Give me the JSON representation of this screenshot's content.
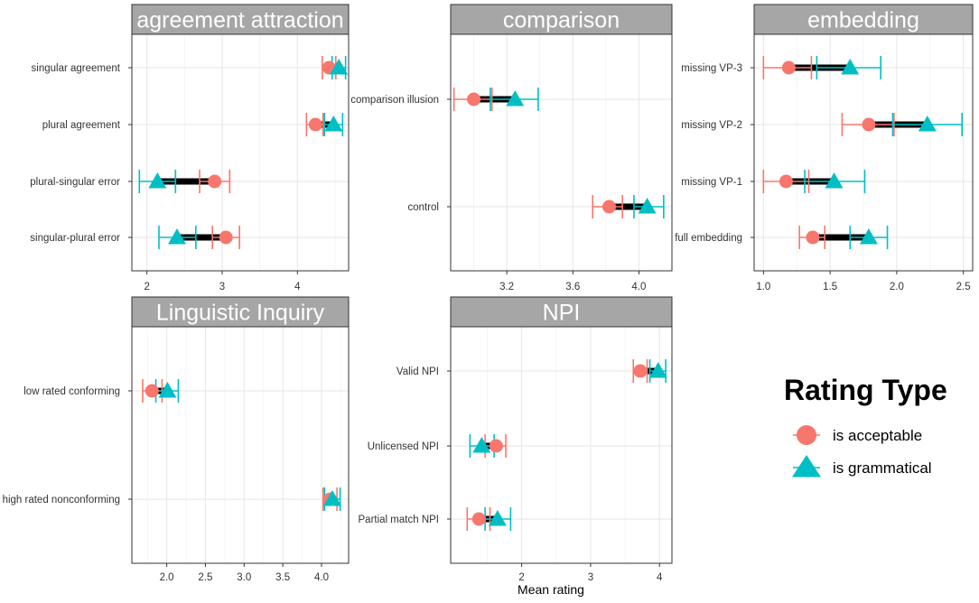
{
  "colors": {
    "acceptable": "#F8766D",
    "grammatical": "#00BFC4",
    "panel_bg": "#FFFFFF",
    "strip_bg": "#A6A6A6",
    "strip_text": "#FFFFFF",
    "grid": "#E6E6E6",
    "connector": "#000000"
  },
  "x_axis_title": "Mean rating",
  "legend": {
    "title": "Rating Type",
    "items": [
      {
        "key": "acceptable",
        "label": "is  acceptable"
      },
      {
        "key": "grammatical",
        "label": "is  grammatical"
      }
    ]
  },
  "chart_data": [
    {
      "type": "dot-errorbar",
      "title": "agreement attraction",
      "xlim": [
        1.8,
        4.68
      ],
      "xticks": [
        2,
        3,
        4
      ],
      "xtick_labels": [
        "2",
        "3",
        "4"
      ],
      "categories": [
        "singular agreement",
        "plural agreement",
        "plural-singular error",
        "singular-plural error"
      ],
      "series": [
        {
          "name": "is acceptable",
          "key": "acceptable",
          "values": [
            4.42,
            4.24,
            2.9,
            3.05
          ],
          "ci_low": [
            4.33,
            4.12,
            2.7,
            2.87
          ],
          "ci_high": [
            4.51,
            4.34,
            3.1,
            3.23
          ]
        },
        {
          "name": "is grammatical",
          "key": "grammatical",
          "values": [
            4.55,
            4.48,
            2.14,
            2.4
          ],
          "ci_low": [
            4.46,
            4.36,
            1.9,
            2.16
          ],
          "ci_high": [
            4.64,
            4.6,
            2.38,
            2.65
          ]
        }
      ]
    },
    {
      "type": "dot-errorbar",
      "title": "comparison",
      "xlim": [
        2.86,
        4.2
      ],
      "xticks": [
        3.2,
        3.6,
        4.0
      ],
      "xtick_labels": [
        "3.2",
        "3.6",
        "4.0"
      ],
      "categories": [
        "comparison illusion",
        "control"
      ],
      "series": [
        {
          "name": "is acceptable",
          "key": "acceptable",
          "values": [
            3.0,
            3.82
          ],
          "ci_low": [
            2.88,
            3.72
          ],
          "ci_high": [
            3.11,
            3.9
          ]
        },
        {
          "name": "is grammatical",
          "key": "grammatical",
          "values": [
            3.25,
            4.05
          ],
          "ci_low": [
            3.1,
            3.97
          ],
          "ci_high": [
            3.39,
            4.15
          ]
        }
      ]
    },
    {
      "type": "dot-errorbar",
      "title": "embedding",
      "xlim": [
        0.93,
        2.57
      ],
      "xticks": [
        1.0,
        1.5,
        2.0,
        2.5
      ],
      "xtick_labels": [
        "1.0",
        "1.5",
        "2.0",
        "2.5"
      ],
      "categories": [
        "missing VP-3",
        "missing VP-2",
        "missing VP-1",
        "full embedding"
      ],
      "series": [
        {
          "name": "is acceptable",
          "key": "acceptable",
          "values": [
            1.19,
            1.79,
            1.17,
            1.37
          ],
          "ci_low": [
            1.0,
            1.59,
            1.0,
            1.27
          ],
          "ci_high": [
            1.36,
            1.98,
            1.34,
            1.46
          ]
        },
        {
          "name": "is grammatical",
          "key": "grammatical",
          "values": [
            1.65,
            2.23,
            1.53,
            1.79
          ],
          "ci_low": [
            1.4,
            1.97,
            1.31,
            1.65
          ],
          "ci_high": [
            1.88,
            2.49,
            1.76,
            1.93
          ]
        }
      ]
    },
    {
      "type": "dot-errorbar",
      "title": "Linguistic Inquiry",
      "xlim": [
        1.55,
        4.35
      ],
      "xticks": [
        2.0,
        2.5,
        3.0,
        3.5,
        4.0
      ],
      "xtick_labels": [
        "2.0",
        "2.5",
        "3.0",
        "3.5",
        "4.0"
      ],
      "categories": [
        "low rated conforming",
        "high rated nonconforming"
      ],
      "series": [
        {
          "name": "is acceptable",
          "key": "acceptable",
          "values": [
            1.81,
            4.11
          ],
          "ci_low": [
            1.69,
            4.02
          ],
          "ci_high": [
            1.94,
            4.2
          ]
        },
        {
          "name": "is grammatical",
          "key": "grammatical",
          "values": [
            2.01,
            4.14
          ],
          "ci_low": [
            1.86,
            4.04
          ],
          "ci_high": [
            2.15,
            4.24
          ]
        }
      ]
    },
    {
      "type": "dot-errorbar",
      "title": "NPI",
      "xlim": [
        0.97,
        4.18
      ],
      "xticks": [
        2,
        3,
        4
      ],
      "xtick_labels": [
        "2",
        "3",
        "4"
      ],
      "categories": [
        "Valid NPI",
        "Unlicensed NPI",
        "Partial match NPI"
      ],
      "series": [
        {
          "name": "is acceptable",
          "key": "acceptable",
          "values": [
            3.72,
            1.63,
            1.38
          ],
          "ci_low": [
            3.62,
            1.47,
            1.21
          ],
          "ci_high": [
            3.82,
            1.77,
            1.54
          ]
        },
        {
          "name": "is grammatical",
          "key": "grammatical",
          "values": [
            3.98,
            1.42,
            1.65
          ],
          "ci_low": [
            3.86,
            1.25,
            1.47
          ],
          "ci_high": [
            4.09,
            1.6,
            1.84
          ]
        }
      ]
    }
  ]
}
